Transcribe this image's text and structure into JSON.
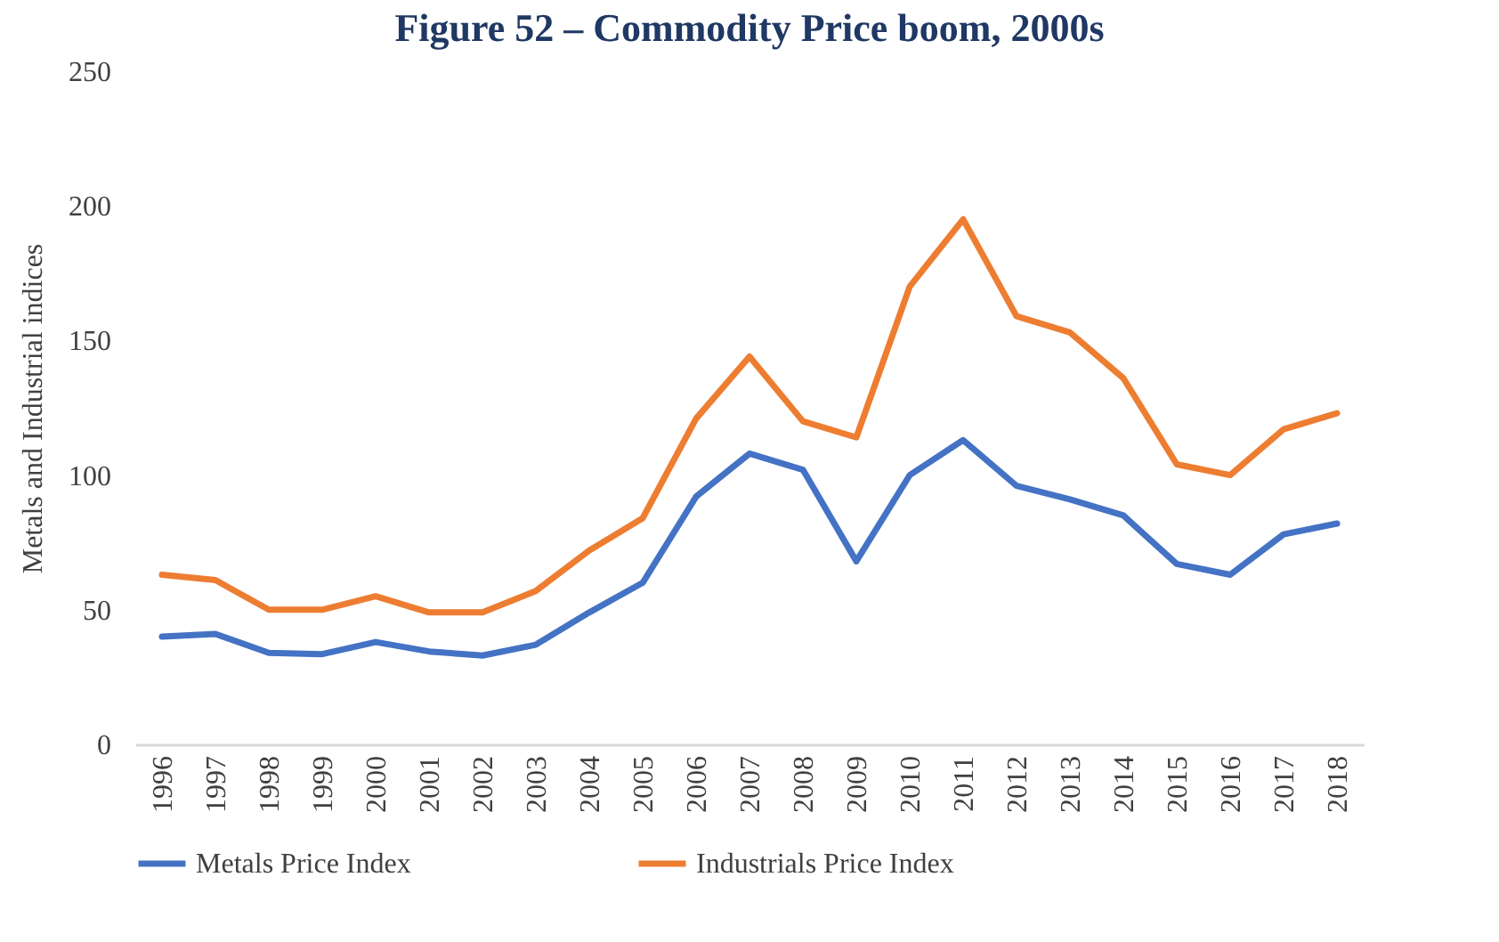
{
  "chart_data": {
    "type": "line",
    "title": "Figure 52 – Commodity Price boom, 2000s",
    "ylabel": "Metals and Industrial indices",
    "categories": [
      "1996",
      "1997",
      "1998",
      "1999",
      "2000",
      "2001",
      "2002",
      "2003",
      "2004",
      "2005",
      "2006",
      "2007",
      "2008",
      "2009",
      "2010",
      "2011",
      "2012",
      "2013",
      "2014",
      "2015",
      "2016",
      "2017",
      "2018"
    ],
    "series": [
      {
        "name": "Metals Price Index",
        "color": "#4472c4",
        "values": [
          40,
          41,
          34,
          33.5,
          38,
          34.5,
          33,
          37,
          49,
          60,
          92,
          108,
          102,
          68,
          100,
          113,
          96,
          91,
          85,
          67,
          63,
          78,
          82
        ]
      },
      {
        "name": "Industrials Price Index",
        "color": "#ed7d31",
        "values": [
          63,
          61,
          50,
          50,
          55,
          49,
          49,
          57,
          72,
          84,
          121,
          144,
          120,
          114,
          170,
          195,
          159,
          153,
          136,
          104,
          100,
          117,
          123
        ]
      }
    ],
    "ylim": [
      0,
      250
    ],
    "yticks": [
      0,
      50,
      100,
      150,
      200,
      250
    ],
    "grid": false,
    "legend": "bottom",
    "marker": "none",
    "line_style": "solid"
  }
}
